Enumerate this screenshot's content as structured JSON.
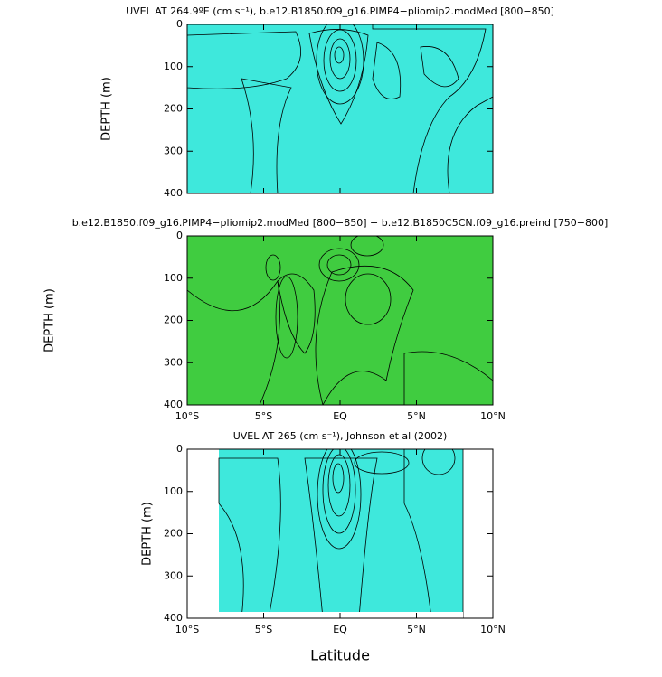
{
  "chart_data": [
    {
      "type": "contour",
      "title": "UVEL AT 264.9ºE (cm s⁻¹), b.e12.B1850.f09_g16.PIMP4−pliomip2.modMed [800−850]",
      "y_label": "DEPTH (m)",
      "xlim": [
        -10,
        10
      ],
      "ylim": [
        0,
        400
      ],
      "y_inverted": true,
      "yticks": [
        0,
        100,
        200,
        300,
        400
      ],
      "xticks": [
        -10,
        -5,
        0,
        5,
        10
      ]
    },
    {
      "type": "contour",
      "title": "b.e12.B1850.f09_g16.PIMP4−pliomip2.modMed [800−850] − b.e12.B1850C5CN.f09_g16.preind [750−800]",
      "y_label": "DEPTH (m)",
      "xlim": [
        -10,
        10
      ],
      "ylim": [
        0,
        400
      ],
      "y_inverted": true,
      "yticks": [
        0,
        100,
        200,
        300,
        400
      ],
      "xticks": [
        {
          "value": -10,
          "label": "10°S"
        },
        {
          "value": -5,
          "label": "5°S"
        },
        {
          "value": 0,
          "label": "EQ"
        },
        {
          "value": 5,
          "label": "5°N"
        },
        {
          "value": 10,
          "label": "10°N"
        }
      ]
    },
    {
      "type": "contour",
      "title": "UVEL AT 265 (cm s⁻¹), Johnson et al (2002)",
      "y_label": "DEPTH (m)",
      "x_label": "Latitude",
      "xlim": [
        -10,
        10
      ],
      "ylim": [
        0,
        400
      ],
      "y_inverted": true,
      "yticks": [
        0,
        100,
        200,
        300,
        400
      ],
      "xticks": [
        {
          "value": -10,
          "label": "10°S"
        },
        {
          "value": -5,
          "label": "5°S"
        },
        {
          "value": 0,
          "label": "EQ"
        },
        {
          "value": 5,
          "label": "5°N"
        },
        {
          "value": 10,
          "label": "10°N"
        }
      ]
    }
  ]
}
